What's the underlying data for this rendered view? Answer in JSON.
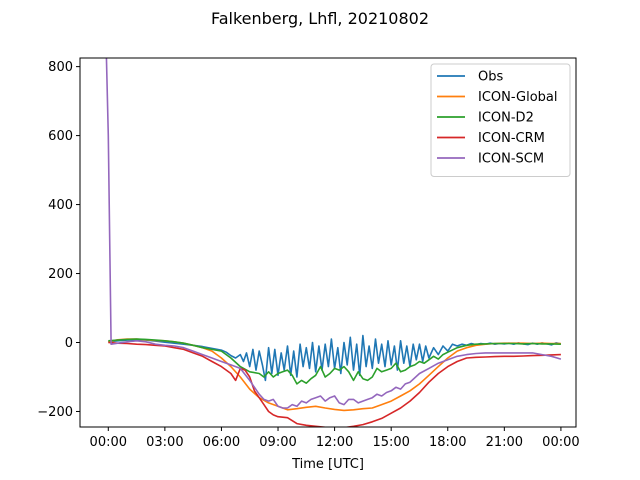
{
  "chart_data": {
    "type": "line",
    "title": "Falkenberg, Lhfl, 20210802",
    "xlabel": "Time [UTC]",
    "ylabel": "",
    "xlim": [
      -1.5,
      24.8
    ],
    "ylim": [
      -245,
      825
    ],
    "x_ticks": [
      0,
      3,
      6,
      9,
      12,
      15,
      18,
      21,
      24
    ],
    "x_tick_labels": [
      "00:00",
      "03:00",
      "06:00",
      "09:00",
      "12:00",
      "15:00",
      "18:00",
      "21:00",
      "00:00"
    ],
    "y_ticks": [
      -200,
      0,
      200,
      400,
      600,
      800
    ],
    "y_tick_labels": [
      "−200",
      "0",
      "200",
      "400",
      "600",
      "800"
    ],
    "grid": false,
    "legend_position": "top-right",
    "series": [
      {
        "name": "Obs",
        "color": "#1f77b4",
        "x": [
          0,
          0.5,
          1,
          1.5,
          2,
          2.5,
          3,
          3.5,
          4,
          4.5,
          5,
          5.5,
          6,
          6.25,
          6.5,
          6.75,
          7,
          7.17,
          7.33,
          7.5,
          7.67,
          7.83,
          8,
          8.17,
          8.33,
          8.5,
          8.67,
          8.83,
          9,
          9.17,
          9.33,
          9.5,
          9.67,
          9.83,
          10,
          10.17,
          10.33,
          10.5,
          10.67,
          10.83,
          11,
          11.17,
          11.33,
          11.5,
          11.67,
          11.83,
          12,
          12.17,
          12.33,
          12.5,
          12.67,
          12.83,
          13,
          13.17,
          13.33,
          13.5,
          13.67,
          13.83,
          14,
          14.17,
          14.33,
          14.5,
          14.67,
          14.83,
          15,
          15.17,
          15.33,
          15.5,
          15.67,
          15.83,
          16,
          16.17,
          16.33,
          16.5,
          16.67,
          16.83,
          17,
          17.25,
          17.5,
          17.75,
          18,
          18.25,
          18.5,
          18.75,
          19,
          19.25,
          19.5,
          19.75,
          20,
          20.25,
          20.5,
          20.75,
          21,
          21.25,
          21.5,
          21.75,
          22,
          22.25,
          22.5,
          22.75,
          23,
          23.25,
          23.5,
          23.75,
          24
        ],
        "y": [
          2,
          5,
          7,
          8,
          7,
          4,
          1,
          -2,
          -5,
          -8,
          -12,
          -17,
          -22,
          -28,
          -38,
          -45,
          -35,
          -55,
          -30,
          -70,
          -20,
          -80,
          -25,
          -65,
          -110,
          -15,
          -90,
          -20,
          -95,
          -30,
          -80,
          -10,
          -95,
          -25,
          -100,
          -5,
          -70,
          -15,
          -75,
          0,
          -85,
          -10,
          -80,
          -5,
          -70,
          10,
          -75,
          -15,
          -90,
          0,
          -65,
          15,
          -80,
          -5,
          -95,
          20,
          -70,
          -10,
          -75,
          10,
          -60,
          -5,
          -70,
          5,
          -65,
          -10,
          -80,
          5,
          -60,
          -10,
          -70,
          -5,
          -50,
          -5,
          -55,
          -10,
          -45,
          -15,
          -35,
          -10,
          -25,
          -5,
          -10,
          -5,
          -8,
          -3,
          -6,
          -3,
          -5,
          -2,
          -5,
          -3,
          -4,
          -2,
          -5,
          -1,
          -4,
          -6,
          -2,
          -5,
          -1,
          -4,
          -7,
          -1,
          -4
        ]
      },
      {
        "name": "ICON-Global",
        "color": "#ff7f0e",
        "x": [
          0,
          0.5,
          1,
          1.5,
          2,
          2.5,
          3,
          3.5,
          4,
          4.5,
          5,
          5.5,
          6,
          6.5,
          7,
          7.5,
          8,
          8.5,
          9,
          9.5,
          10,
          10.5,
          11,
          11.5,
          12,
          12.5,
          13,
          13.5,
          14,
          14.5,
          15,
          15.5,
          16,
          16.5,
          17,
          17.5,
          18,
          18.5,
          19,
          19.5,
          20,
          20.5,
          21,
          21.5,
          22,
          22.5,
          23,
          23.5,
          24
        ],
        "y": [
          2,
          8,
          10,
          10,
          8,
          6,
          5,
          2,
          -2,
          -8,
          -15,
          -25,
          -45,
          -70,
          -100,
          -135,
          -160,
          -175,
          -185,
          -195,
          -192,
          -188,
          -185,
          -190,
          -194,
          -197,
          -195,
          -192,
          -190,
          -180,
          -170,
          -155,
          -140,
          -120,
          -95,
          -70,
          -45,
          -25,
          -15,
          -8,
          -5,
          -3,
          -2,
          -2,
          -2,
          -3,
          -2,
          -3,
          -3
        ]
      },
      {
        "name": "ICON-D2",
        "color": "#2ca02c",
        "x": [
          0,
          0.5,
          1,
          1.5,
          2,
          2.5,
          3,
          3.5,
          4,
          4.5,
          5,
          5.5,
          6,
          6.5,
          7,
          7.5,
          8,
          8.25,
          8.5,
          8.75,
          9,
          9.25,
          9.5,
          9.75,
          10,
          10.25,
          10.5,
          10.75,
          11,
          11.25,
          11.5,
          11.75,
          12,
          12.25,
          12.5,
          12.75,
          13,
          13.25,
          13.5,
          13.75,
          14,
          14.25,
          14.5,
          14.75,
          15,
          15.25,
          15.5,
          15.75,
          16,
          16.25,
          16.5,
          16.75,
          17,
          17.25,
          17.5,
          17.75,
          18,
          18.5,
          19,
          19.5,
          20,
          20.5,
          21,
          21.5,
          22,
          22.5,
          23,
          23.5,
          24
        ],
        "y": [
          5,
          7,
          9,
          10,
          9,
          7,
          5,
          2,
          -2,
          -8,
          -15,
          -20,
          -25,
          -45,
          -70,
          -85,
          -90,
          -100,
          -85,
          -100,
          -90,
          -85,
          -80,
          -95,
          -120,
          -110,
          -118,
          -105,
          -95,
          -70,
          -100,
          -90,
          -75,
          -80,
          -70,
          -85,
          -110,
          -85,
          -105,
          -110,
          -100,
          -75,
          -85,
          -80,
          -75,
          -60,
          -85,
          -80,
          -70,
          -65,
          -55,
          -60,
          -50,
          -40,
          -48,
          -35,
          -28,
          -15,
          -8,
          -5,
          -4,
          -3,
          -3,
          -3,
          -4,
          -3,
          -4,
          -4,
          -5
        ]
      },
      {
        "name": "ICON-CRM",
        "color": "#d62728",
        "x": [
          0,
          0.5,
          1,
          1.5,
          2,
          2.5,
          3,
          3.5,
          4,
          4.5,
          5,
          5.5,
          6,
          6.5,
          6.75,
          7,
          7.25,
          7.5,
          7.75,
          8,
          8.25,
          8.5,
          8.75,
          9,
          9.5,
          10,
          10.5,
          11,
          11.5,
          12,
          12.5,
          13,
          13.5,
          14,
          14.5,
          15,
          15.5,
          16,
          16.5,
          17,
          17.5,
          18,
          18.5,
          19,
          19.5,
          20,
          20.5,
          21,
          21.5,
          22,
          22.5,
          23,
          23.5,
          24
        ],
        "y": [
          0,
          -2,
          -3,
          -5,
          -6,
          -8,
          -10,
          -15,
          -20,
          -30,
          -40,
          -55,
          -70,
          -90,
          -110,
          -75,
          -80,
          -100,
          -140,
          -160,
          -180,
          -200,
          -210,
          -215,
          -218,
          -235,
          -240,
          -243,
          -246,
          -248,
          -247,
          -243,
          -238,
          -230,
          -220,
          -205,
          -190,
          -170,
          -145,
          -115,
          -90,
          -70,
          -55,
          -45,
          -43,
          -42,
          -41,
          -40,
          -40,
          -39,
          -38,
          -37,
          -36,
          -35
        ]
      },
      {
        "name": "ICON-SCM",
        "color": "#9467bd",
        "x": [
          -0.1,
          0,
          0.15,
          0.5,
          1,
          1.5,
          2,
          2.5,
          3,
          3.5,
          4,
          4.5,
          5,
          5.5,
          6,
          6.5,
          7,
          7.5,
          8,
          8.25,
          8.5,
          8.75,
          9,
          9.25,
          9.5,
          9.75,
          10,
          10.25,
          10.5,
          10.75,
          11,
          11.25,
          11.5,
          11.75,
          12,
          12.25,
          12.5,
          12.75,
          13,
          13.25,
          13.5,
          13.75,
          14,
          14.25,
          14.5,
          14.75,
          15,
          15.25,
          15.5,
          15.75,
          16,
          16.5,
          17,
          17.5,
          18,
          18.5,
          19,
          19.5,
          20,
          20.5,
          21,
          21.5,
          22,
          22.5,
          23,
          23.5,
          24
        ],
        "y": [
          830,
          600,
          -5,
          -2,
          2,
          5,
          2,
          -5,
          -8,
          -10,
          -15,
          -25,
          -35,
          -45,
          -55,
          -65,
          -75,
          -110,
          -150,
          -165,
          -170,
          -165,
          -185,
          -190,
          -190,
          -180,
          -185,
          -170,
          -175,
          -165,
          -160,
          -155,
          -170,
          -160,
          -155,
          -175,
          -180,
          -165,
          -165,
          -175,
          -170,
          -165,
          -160,
          -150,
          -155,
          -145,
          -140,
          -130,
          -135,
          -120,
          -115,
          -90,
          -75,
          -60,
          -50,
          -40,
          -35,
          -32,
          -30,
          -30,
          -30,
          -30,
          -30,
          -30,
          -35,
          -40,
          -48
        ]
      }
    ]
  }
}
